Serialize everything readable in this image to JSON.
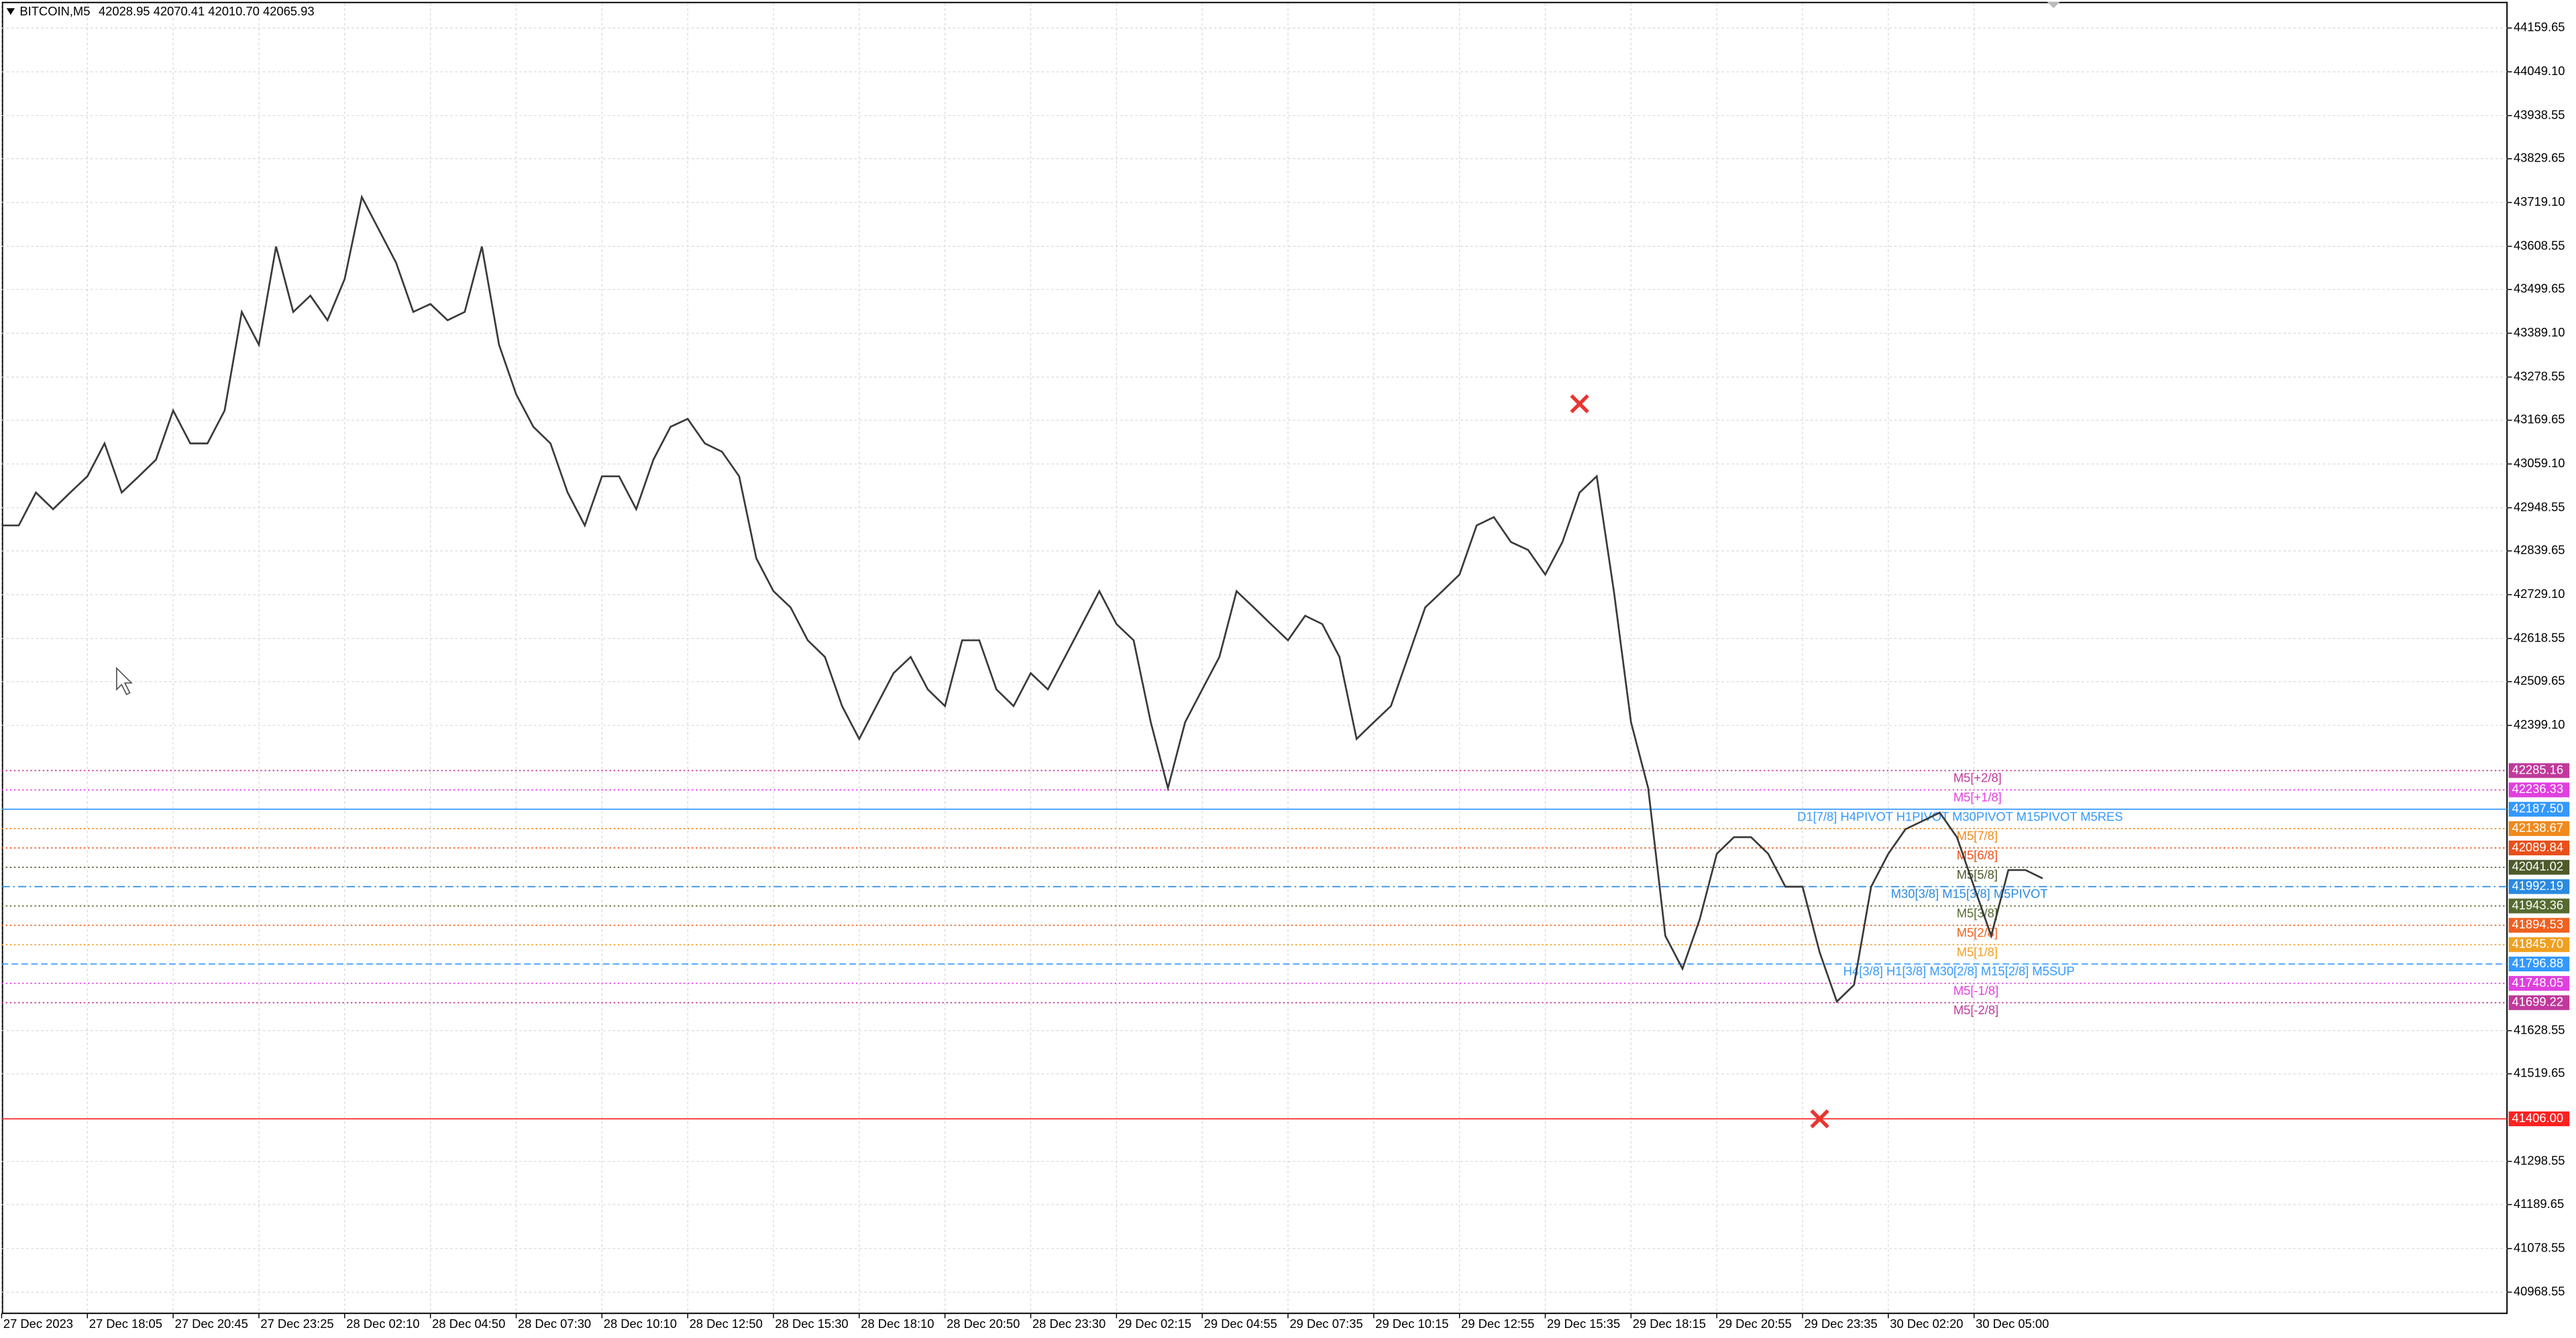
{
  "chart_data": {
    "type": "line",
    "title": "BITCOIN,M5",
    "subtitle": "42028.95 42070.41 42010.70 42065.93",
    "categories": [
      "27 Dec 2023",
      null,
      null,
      null,
      null,
      "27 Dec 18:05",
      null,
      null,
      null,
      null,
      "27 Dec 20:45",
      null,
      null,
      null,
      null,
      "27 Dec 23:25",
      null,
      null,
      null,
      null,
      "28 Dec 02:10",
      null,
      null,
      null,
      null,
      "28 Dec 04:50",
      null,
      null,
      null,
      null,
      "28 Dec 07:30",
      null,
      null,
      null,
      null,
      "28 Dec 10:10",
      null,
      null,
      null,
      null,
      "28 Dec 12:50",
      null,
      null,
      null,
      null,
      "28 Dec 15:30",
      null,
      null,
      null,
      null,
      "28 Dec 18:10",
      null,
      null,
      null,
      null,
      "28 Dec 20:50",
      null,
      null,
      null,
      null,
      "28 Dec 23:30",
      null,
      null,
      null,
      null,
      "29 Dec 02:15",
      null,
      null,
      null,
      null,
      "29 Dec 04:55",
      null,
      null,
      null,
      null,
      "29 Dec 07:35",
      null,
      null,
      null,
      null,
      "29 Dec 10:15",
      null,
      null,
      null,
      null,
      "29 Dec 12:55",
      null,
      null,
      null,
      null,
      "29 Dec 15:35",
      null,
      null,
      null,
      null,
      "29 Dec 18:15",
      null,
      null,
      null,
      null,
      "29 Dec 20:55",
      null,
      null,
      null,
      null,
      "29 Dec 23:35",
      null,
      null,
      null,
      null,
      "30 Dec 02:20",
      null,
      null,
      null,
      null,
      "30 Dec 05:00",
      null,
      null,
      null,
      null
    ],
    "series": [
      {
        "color": "#3a3a3a",
        "values": [
          42904,
          42904,
          42987,
          42945,
          42987,
          43028,
          43111,
          42987,
          43028,
          43070,
          43194,
          43111,
          43111,
          43194,
          43443,
          43360,
          43608,
          43443,
          43484,
          43422,
          43526,
          43733,
          43650,
          43567,
          43443,
          43463,
          43422,
          43443,
          43608,
          43360,
          43235,
          43153,
          43111,
          42987,
          42904,
          43028,
          43028,
          42945,
          43070,
          43153,
          43173,
          43111,
          43090,
          43028,
          42821,
          42738,
          42697,
          42614,
          42572,
          42448,
          42365,
          42448,
          42531,
          42572,
          42490,
          42448,
          42614,
          42614,
          42490,
          42448,
          42531,
          42490,
          42572,
          42655,
          42738,
          42655,
          42614,
          42407,
          42241,
          42407,
          42490,
          42572,
          42738,
          42697,
          42655,
          42614,
          42676,
          42655,
          42572,
          42365,
          42407,
          42448,
          42572,
          42697,
          42738,
          42780,
          42904,
          42925,
          42862,
          42842,
          42780,
          42862,
          42987,
          43028,
          42738,
          42407,
          42241,
          41868,
          41785,
          41909,
          42075,
          42117,
          42117,
          42075,
          41992,
          41992,
          41826,
          41702,
          41744,
          41992,
          42075,
          42137,
          42158,
          42179,
          42117,
          41992,
          41868,
          42034,
          42034,
          42013
        ]
      }
    ],
    "ylim": [
      40915,
      44222
    ],
    "yticks": [
      44159.65,
      {
        "value": 44049.1,
        "label": "44049.10"
      },
      43938.55,
      43829.65,
      {
        "value": 43719.1,
        "label": "43719.10"
      },
      43608.55,
      43499.65,
      {
        "value": 43389.1,
        "label": "43389.10"
      },
      43278.55,
      43169.65,
      {
        "value": 43059.1,
        "label": "43059.10"
      },
      42948.55,
      42839.65,
      {
        "value": 42729.1,
        "label": "42729.10"
      },
      42618.55,
      42509.65,
      {
        "value": 42399.1,
        "label": "42399.10"
      },
      41628.55,
      41519.65,
      41298.55,
      41189.65,
      41078.55,
      40968.55
    ],
    "grid": true,
    "levels": {
      "values": [
        42285.16,
        42236.33,
        42187.5,
        42138.67,
        42089.84,
        42041.02,
        41992.19,
        41943.36,
        41894.53,
        41845.7,
        41796.88,
        41748.05,
        41699.22,
        41406
      ],
      "value_labels": [
        "42285.16",
        "42236.33",
        "42187.50",
        "42138.67",
        "42089.84",
        "42041.02",
        "41992.19",
        "41943.36",
        "41894.53",
        "41845.70",
        "41796.88",
        "41748.05",
        "41699.22",
        "41406.00"
      ],
      "names": [
        "M5[+2/8]",
        "M5[+1/8]",
        "D1[7/8] H4PIVOT H1PIVOT M30PIVOT M15PIVOT M5RES",
        "M5[7/8]",
        "M5[6/8]",
        "M5[5/8]",
        "M30[3/8] M15[3/8] M5PIVOT",
        "M5[3/8]",
        "M5[2/8]",
        "M5[1/8]",
        "H4[3/8] H1[3/8] M30[2/8] M15[2/8] M5SUP",
        "M5[-1/8]",
        "M5[-2/8]",
        null
      ],
      "colors": [
        "#c0399b",
        "#e040e0",
        "#3399ff",
        "#f08a1c",
        "#e8501a",
        "#4d5a2a",
        "#2a8ae0",
        "#556b2f",
        "#f06020",
        "#f0a020",
        "#3399ff",
        "#e040e0",
        "#c0399b",
        "#ff2020"
      ],
      "styles": [
        "dotted",
        "dotted",
        "solid",
        "dotted",
        "dotted",
        "dotted",
        "dashdot",
        "dotted",
        "dotted",
        "dotted",
        "dashed",
        "dotted",
        "dotted",
        "solid"
      ]
    },
    "markers": {
      "positions": [
        92,
        106
      ],
      "values": [
        43211,
        41406
      ],
      "color": "#e8352f"
    }
  }
}
